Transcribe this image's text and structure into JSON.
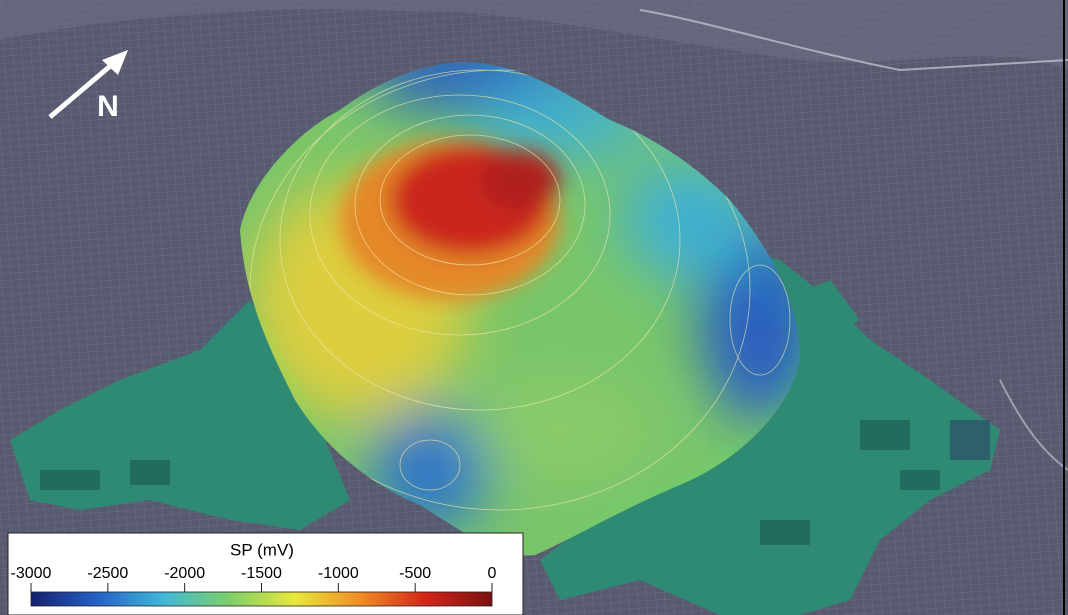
{
  "north_arrow": {
    "label": "N"
  },
  "colorbar": {
    "title": "SP (mV)",
    "lim": [
      -3000,
      0
    ],
    "ticks": [
      -3000,
      -2500,
      -2000,
      -1500,
      -1000,
      -500,
      0
    ],
    "colors": [
      "#15206e",
      "#2660c8",
      "#3fb8d8",
      "#7ccf6a",
      "#e8e83a",
      "#f08c24",
      "#d42418",
      "#7a1010"
    ]
  }
}
